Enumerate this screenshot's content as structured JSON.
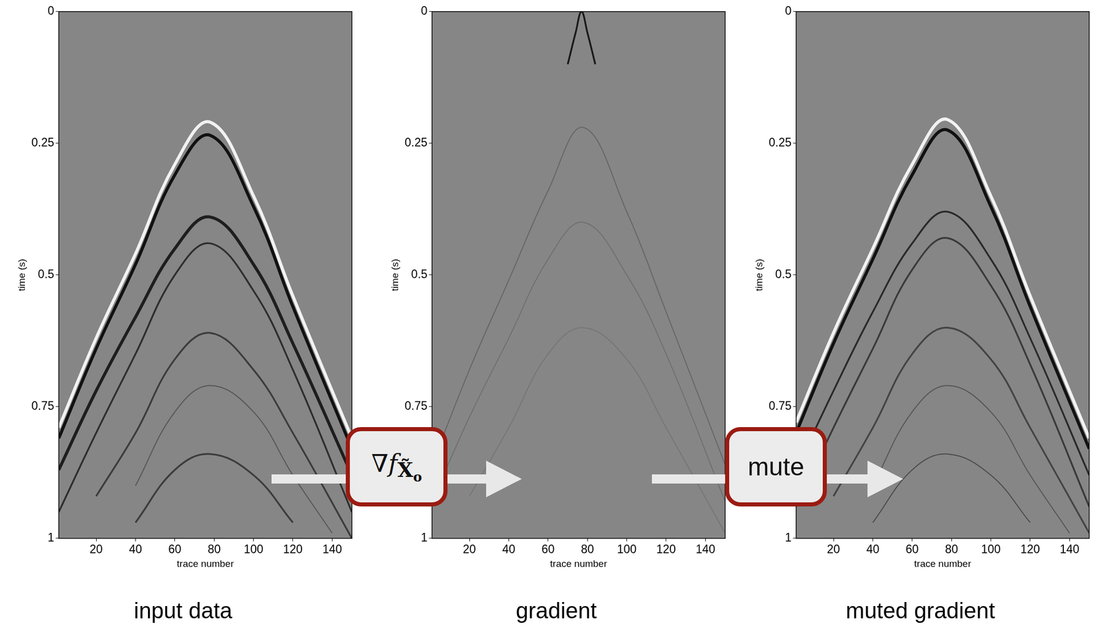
{
  "chart_data": [
    {
      "type": "line",
      "title": "input data",
      "x_label": "trace number",
      "y_label": "time (s)",
      "xlim": [
        1,
        150
      ],
      "ylim": [
        0,
        1
      ],
      "xticks": [
        20,
        40,
        60,
        80,
        100,
        120,
        140
      ],
      "yticks": [
        0,
        0.25,
        0.5,
        0.75,
        1
      ],
      "grid": false,
      "series": [
        {
          "color": "#f2f2f2",
          "line_style": "thick",
          "x": [
            1,
            20,
            40,
            60,
            78,
            100,
            120,
            150
          ],
          "values": [
            0.79,
            0.62,
            0.46,
            0.29,
            0.21,
            0.35,
            0.54,
            0.81
          ]
        },
        {
          "color": "#111111",
          "line_style": "thick",
          "x": [
            1,
            20,
            40,
            60,
            78,
            100,
            120,
            150
          ],
          "values": [
            0.81,
            0.64,
            0.48,
            0.31,
            0.235,
            0.37,
            0.56,
            0.83
          ]
        },
        {
          "color": "#1e1e1e",
          "line_style": "thick",
          "x": [
            1,
            20,
            40,
            60,
            78,
            100,
            120,
            150
          ],
          "values": [
            0.87,
            0.72,
            0.58,
            0.45,
            0.39,
            0.48,
            0.63,
            0.88
          ]
        },
        {
          "color": "#2e2e2e",
          "line_style": "medium",
          "x": [
            1,
            20,
            40,
            60,
            78,
            100,
            120,
            150
          ],
          "values": [
            0.95,
            0.8,
            0.65,
            0.5,
            0.44,
            0.53,
            0.68,
            0.95
          ]
        },
        {
          "color": "#3c3c3c",
          "line_style": "medium",
          "x": [
            20,
            40,
            60,
            78,
            100,
            120,
            150
          ],
          "values": [
            0.92,
            0.8,
            0.66,
            0.61,
            0.68,
            0.8,
            1.0
          ]
        },
        {
          "color": "#555555",
          "line_style": "thin",
          "x": [
            40,
            60,
            78,
            100,
            120,
            140
          ],
          "values": [
            0.9,
            0.76,
            0.71,
            0.76,
            0.88,
            0.99
          ]
        },
        {
          "color": "#3c3c3c",
          "line_style": "medium",
          "x": [
            40,
            60,
            78,
            100,
            120
          ],
          "values": [
            0.97,
            0.87,
            0.84,
            0.88,
            0.97
          ]
        }
      ]
    },
    {
      "type": "line",
      "title": "gradient",
      "x_label": "trace number",
      "y_label": "time (s)",
      "xlim": [
        1,
        150
      ],
      "ylim": [
        0,
        1
      ],
      "xticks": [
        20,
        40,
        60,
        80,
        100,
        120,
        140
      ],
      "yticks": [
        0,
        0.25,
        0.5,
        0.75,
        1
      ],
      "grid": false,
      "series": [
        {
          "color": "#1a1a1a",
          "line_style": "medium",
          "x": [
            70,
            74,
            77,
            80,
            84
          ],
          "values": [
            0.1,
            0.04,
            0.0,
            0.04,
            0.1
          ]
        },
        {
          "color": "#666666",
          "line_style": "thin",
          "x": [
            1,
            20,
            40,
            60,
            78,
            100,
            120,
            150
          ],
          "values": [
            0.86,
            0.68,
            0.51,
            0.34,
            0.22,
            0.38,
            0.57,
            0.86
          ]
        },
        {
          "color": "#707070",
          "line_style": "thin",
          "x": [
            1,
            20,
            40,
            60,
            78,
            100,
            120,
            150
          ],
          "values": [
            0.93,
            0.77,
            0.62,
            0.47,
            0.4,
            0.5,
            0.65,
            0.93
          ]
        },
        {
          "color": "#767676",
          "line_style": "thin",
          "x": [
            20,
            40,
            60,
            78,
            100,
            120,
            150
          ],
          "values": [
            0.92,
            0.79,
            0.65,
            0.6,
            0.66,
            0.79,
            0.99
          ]
        }
      ]
    },
    {
      "type": "line",
      "title": "muted gradient",
      "x_label": "trace number",
      "y_label": "time (s)",
      "xlim": [
        1,
        150
      ],
      "ylim": [
        0,
        1
      ],
      "xticks": [
        20,
        40,
        60,
        80,
        100,
        120,
        140
      ],
      "yticks": [
        0,
        0.25,
        0.5,
        0.75,
        1
      ],
      "grid": false,
      "series": [
        {
          "color": "#f2f2f2",
          "line_style": "thick",
          "x": [
            1,
            20,
            40,
            60,
            78,
            100,
            120,
            150
          ],
          "values": [
            0.78,
            0.61,
            0.45,
            0.29,
            0.205,
            0.35,
            0.54,
            0.81
          ]
        },
        {
          "color": "#111111",
          "line_style": "thick",
          "x": [
            1,
            20,
            40,
            60,
            78,
            100,
            120,
            150
          ],
          "values": [
            0.8,
            0.63,
            0.47,
            0.31,
            0.225,
            0.37,
            0.56,
            0.83
          ]
        },
        {
          "color": "#2a2a2a",
          "line_style": "medium",
          "x": [
            1,
            20,
            40,
            60,
            78,
            100,
            120,
            150
          ],
          "values": [
            0.87,
            0.72,
            0.57,
            0.44,
            0.38,
            0.47,
            0.62,
            0.88
          ]
        },
        {
          "color": "#3a3a3a",
          "line_style": "medium",
          "x": [
            1,
            20,
            40,
            60,
            78,
            100,
            120,
            150
          ],
          "values": [
            0.94,
            0.79,
            0.64,
            0.49,
            0.43,
            0.52,
            0.67,
            0.94
          ]
        },
        {
          "color": "#444444",
          "line_style": "medium",
          "x": [
            20,
            40,
            60,
            78,
            100,
            120,
            150
          ],
          "values": [
            0.92,
            0.79,
            0.65,
            0.6,
            0.66,
            0.79,
            0.99
          ]
        },
        {
          "color": "#555555",
          "line_style": "thin",
          "x": [
            40,
            60,
            78,
            100,
            120,
            140
          ],
          "values": [
            0.9,
            0.76,
            0.71,
            0.76,
            0.88,
            0.99
          ]
        },
        {
          "color": "#4a4a4a",
          "line_style": "thin",
          "x": [
            40,
            60,
            78,
            100,
            120
          ],
          "values": [
            0.97,
            0.87,
            0.84,
            0.88,
            0.97
          ]
        }
      ]
    }
  ],
  "operators": [
    {
      "symbol": "∇f",
      "subscript": "X̃",
      "subscript_index": "o"
    },
    {
      "label": "mute"
    }
  ]
}
